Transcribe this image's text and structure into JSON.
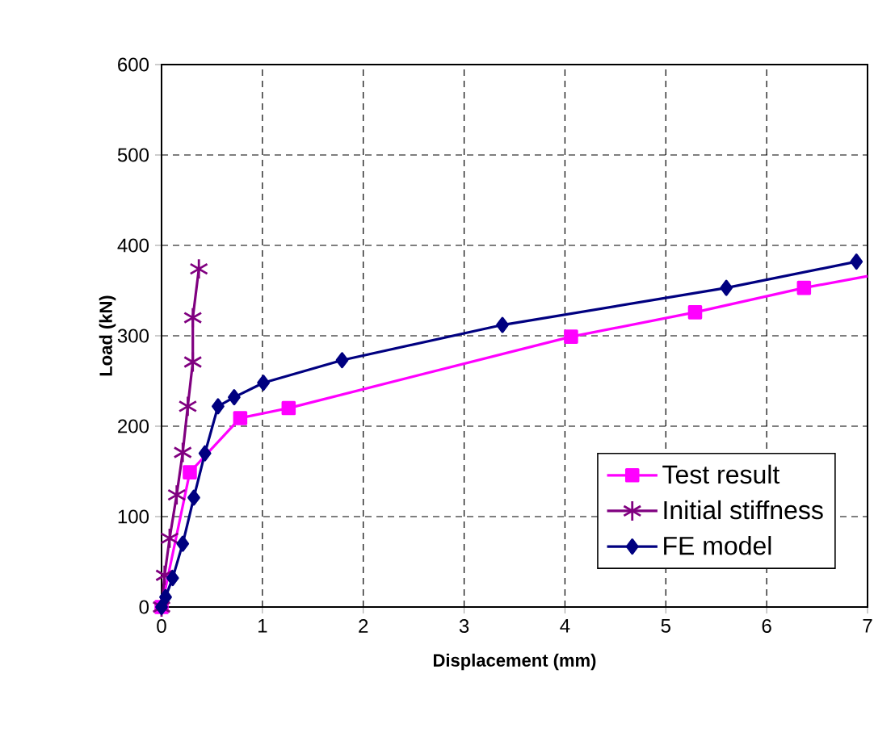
{
  "chart_data": {
    "type": "line",
    "xlabel": "Displacement (mm)",
    "ylabel": "Load (kN)",
    "xlim": [
      0,
      7
    ],
    "xticks": [
      0,
      1,
      2,
      3,
      4,
      5,
      6,
      7
    ],
    "ylim": [
      0,
      600
    ],
    "yticks": [
      0,
      100,
      200,
      300,
      400,
      500,
      600
    ],
    "grid": true,
    "legend": "bottom right",
    "series": [
      {
        "name": "Test result",
        "color": "#ff00ff",
        "marker": "square",
        "x": [
          0,
          0.28,
          0.78,
          1.26,
          4.06,
          5.29,
          6.37
        ],
        "values": [
          0,
          149,
          209,
          220,
          299,
          326,
          353
        ]
      },
      {
        "color": "#ff00ff",
        "marker": "none",
        "x": [
          6.37,
          7
        ],
        "values": [
          353,
          366
        ]
      },
      {
        "name": "Initial stiffness",
        "color": "#800080",
        "marker": "cross",
        "x": [
          0,
          0.03,
          0.08,
          0.15,
          0.21,
          0.26,
          0.31,
          0.31,
          0.37
        ],
        "values": [
          0,
          35,
          76,
          124,
          171,
          222,
          271,
          320,
          374
        ]
      },
      {
        "name": "FE model",
        "color": "#000080",
        "marker": "diamond",
        "x": [
          0,
          0.04,
          0.11,
          0.21,
          0.32,
          0.43,
          0.56,
          0.72,
          1.01,
          1.79,
          3.38,
          5.6,
          6.89
        ],
        "values": [
          0,
          11,
          32,
          70,
          121,
          170,
          222,
          232,
          248,
          273,
          312,
          353,
          382
        ]
      }
    ]
  }
}
